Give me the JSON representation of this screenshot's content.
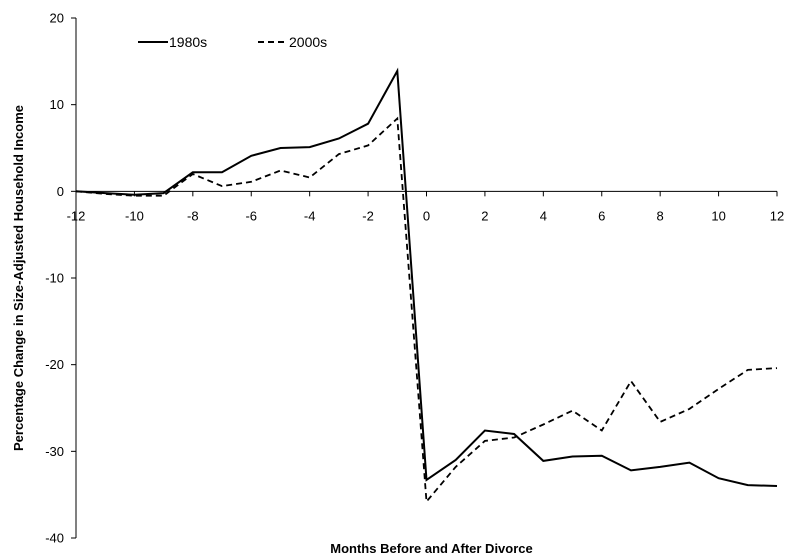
{
  "chart_data": {
    "type": "line",
    "title": "",
    "xlabel": "Months Before and After Divorce",
    "ylabel": "Percentage Change in Size-Adjusted Household Income",
    "xlim": [
      -12,
      12
    ],
    "ylim": [
      -40,
      20
    ],
    "x_ticks": [
      -12,
      -10,
      -8,
      -6,
      -4,
      -2,
      0,
      2,
      4,
      6,
      8,
      10,
      12
    ],
    "y_ticks": [
      -40,
      -30,
      -20,
      -10,
      0,
      10,
      20
    ],
    "grid": false,
    "legend_position": "top-left",
    "x": [
      -12,
      -11,
      -10,
      -9,
      -8,
      -7,
      -6,
      -5,
      -4,
      -3,
      -2,
      -1,
      0,
      1,
      2,
      3,
      4,
      5,
      6,
      7,
      8,
      9,
      10,
      11,
      12
    ],
    "series": [
      {
        "name": "1980s",
        "style": "solid",
        "color": "#000000",
        "values": [
          0,
          -0.2,
          -0.4,
          -0.2,
          2.2,
          2.2,
          4.1,
          5.0,
          5.1,
          6.1,
          7.8,
          13.9,
          -33.3,
          -31.0,
          -27.6,
          -28.0,
          -31.1,
          -30.6,
          -30.5,
          -32.2,
          -31.8,
          -31.3,
          -33.1,
          -33.9,
          -34.0
        ]
      },
      {
        "name": "2000s",
        "style": "dashed",
        "color": "#000000",
        "values": [
          0,
          -0.3,
          -0.5,
          -0.5,
          2.0,
          0.6,
          1.1,
          2.4,
          1.6,
          4.3,
          5.3,
          8.4,
          -35.8,
          -31.8,
          -28.8,
          -28.4,
          -26.9,
          -25.3,
          -27.6,
          -21.9,
          -26.6,
          -25.1,
          -22.8,
          -20.6,
          -20.4
        ]
      }
    ]
  }
}
